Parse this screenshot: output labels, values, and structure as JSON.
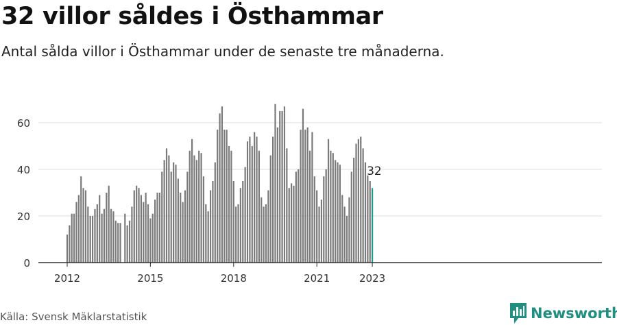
{
  "title": "32 villor såldes i Östhammar",
  "subtitle": "Antal sålda villor i Östhammar under de senaste tre månaderna.",
  "source": "Källa: Svensk Mäklarstatistik",
  "logo": {
    "name": "Newsworthy",
    "icon": "bar-chart-logo-icon"
  },
  "colors": {
    "bar": "#7a7a7a",
    "highlight": "#1f9a8a",
    "grid": "#dddddd",
    "axis": "#333333",
    "brand": "#1f8f80"
  },
  "chart_data": {
    "type": "bar",
    "x_unit": "month",
    "x_start": "2012-01",
    "x_end": "2023-01",
    "values": [
      12,
      16,
      21,
      21,
      26,
      29,
      37,
      32,
      31,
      24,
      20,
      20,
      23,
      25,
      29,
      21,
      23,
      30,
      33,
      23,
      22,
      18,
      17,
      17,
      null,
      21,
      16,
      18,
      24,
      31,
      33,
      32,
      29,
      26,
      30,
      25,
      19,
      21,
      27,
      30,
      30,
      39,
      44,
      49,
      46,
      39,
      43,
      42,
      36,
      30,
      26,
      31,
      39,
      48,
      53,
      46,
      44,
      48,
      47,
      37,
      25,
      22,
      31,
      35,
      43,
      57,
      64,
      67,
      57,
      57,
      50,
      48,
      35,
      24,
      25,
      32,
      35,
      41,
      52,
      54,
      50,
      56,
      54,
      48,
      28,
      24,
      25,
      31,
      46,
      54,
      68,
      58,
      65,
      65,
      67,
      49,
      32,
      34,
      33,
      39,
      40,
      57,
      66,
      57,
      58,
      48,
      56,
      37,
      31,
      24,
      27,
      37,
      40,
      53,
      48,
      47,
      44,
      43,
      42,
      29,
      24,
      20,
      28,
      39,
      45,
      51,
      53,
      54,
      49,
      43,
      38,
      35,
      32
    ],
    "highlight_last": true,
    "highlight_label": "32",
    "x_ticks": [
      "2012",
      "2015",
      "2018",
      "2021",
      "2023"
    ],
    "y_ticks": [
      0,
      20,
      40,
      60
    ],
    "ylim": [
      0,
      70
    ]
  }
}
